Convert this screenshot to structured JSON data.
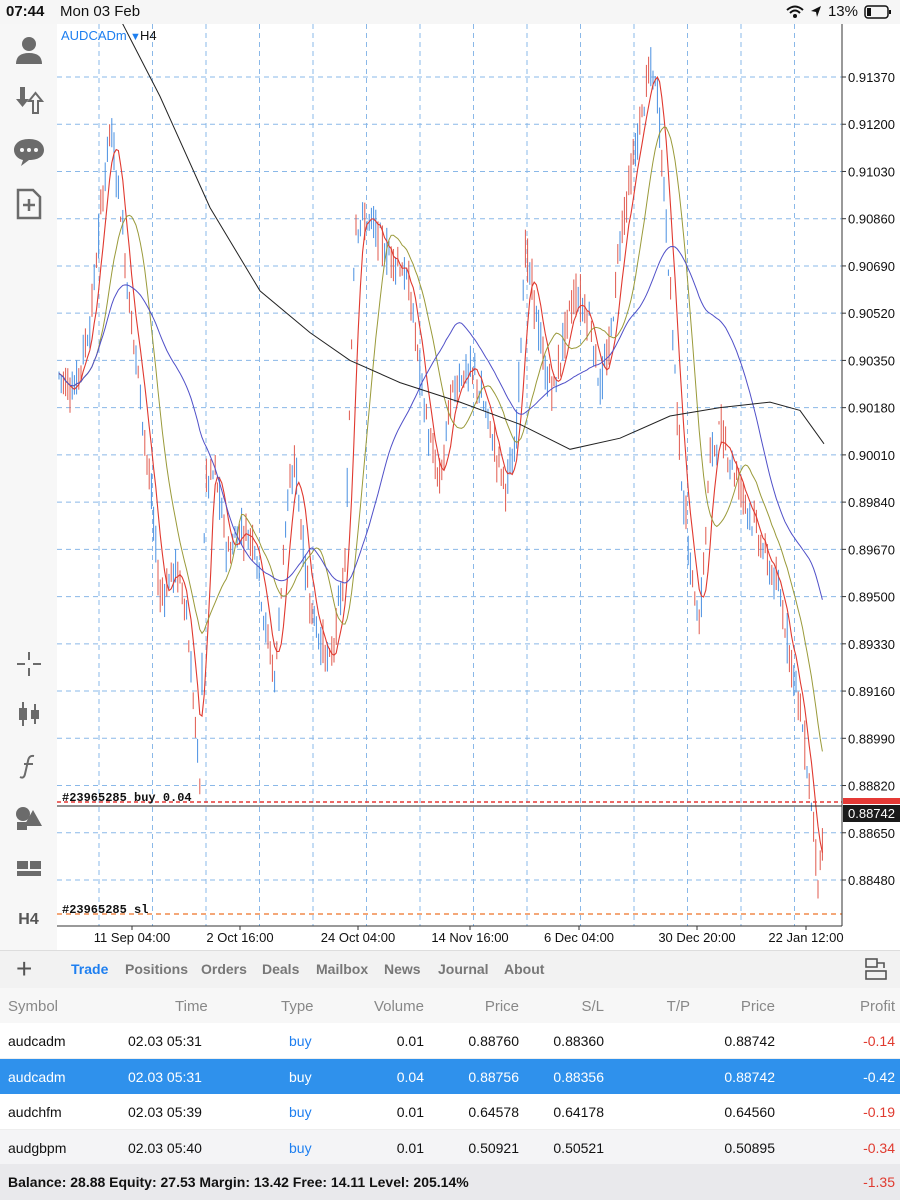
{
  "status": {
    "time": "07:44",
    "date": "Mon 03 Feb",
    "battery": "13%"
  },
  "toolbar": {
    "timeframe": "H4"
  },
  "chart": {
    "symbol": "AUDCADm",
    "timeframe": "H4",
    "price_labels": [
      "0.91370",
      "0.91200",
      "0.91030",
      "0.90860",
      "0.90690",
      "0.90520",
      "0.90350",
      "0.90180",
      "0.90010",
      "0.89840",
      "0.89670",
      "0.89500",
      "0.89330",
      "0.89160",
      "0.88990",
      "0.88820",
      "0.88650",
      "0.88480"
    ],
    "time_labels": [
      "11 Sep 04:00",
      "2 Oct 16:00",
      "24 Oct 04:00",
      "14 Nov 16:00",
      "6 Dec 04:00",
      "30 Dec 20:00",
      "22 Jan 12:00"
    ],
    "current_price": "0.88742",
    "order_label": "#23965285 buy 0.04",
    "sl_label": "#23965285 sl",
    "colors": {
      "up": "#4a90e2",
      "down": "#e05a4e",
      "bid": "#e53935",
      "grid": "#8ab8e8"
    }
  },
  "tabs": [
    "Trade",
    "Positions",
    "Orders",
    "Deals",
    "Mailbox",
    "News",
    "Journal",
    "About"
  ],
  "table": {
    "headers": {
      "symbol": "Symbol",
      "time": "Time",
      "type": "Type",
      "volume": "Volume",
      "price": "Price",
      "sl": "S/L",
      "tp": "T/P",
      "current": "Price",
      "profit": "Profit"
    },
    "rows": [
      {
        "symbol": "audcadm",
        "time": "02.03 05:31",
        "type": "buy",
        "volume": "0.01",
        "price": "0.88760",
        "sl": "0.88360",
        "current": "0.88742",
        "profit": "-0.14"
      },
      {
        "symbol": "audcadm",
        "time": "02.03 05:31",
        "type": "buy",
        "volume": "0.04",
        "price": "0.88756",
        "sl": "0.88356",
        "current": "0.88742",
        "profit": "-0.42"
      },
      {
        "symbol": "audchfm",
        "time": "02.03 05:39",
        "type": "buy",
        "volume": "0.01",
        "price": "0.64578",
        "sl": "0.64178",
        "current": "0.64560",
        "profit": "-0.19"
      },
      {
        "symbol": "audgbpm",
        "time": "02.03 05:40",
        "type": "buy",
        "volume": "0.01",
        "price": "0.50921",
        "sl": "0.50521",
        "current": "0.50895",
        "profit": "-0.34"
      }
    ]
  },
  "summary": {
    "text": "Balance: 28.88 Equity: 27.53 Margin: 13.42 Free: 14.11 Level: 205.14%",
    "total": "-1.35"
  }
}
